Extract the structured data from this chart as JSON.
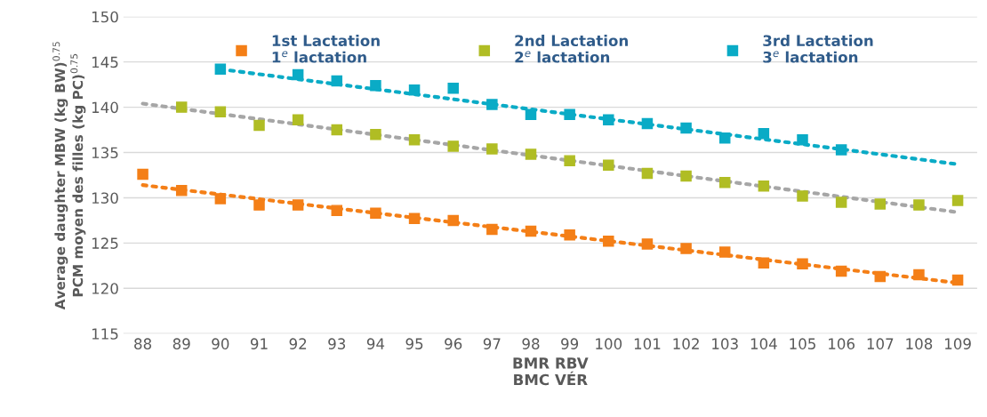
{
  "chart_data": {
    "type": "scatter",
    "xlabel": "BMR RBV\nBMC VÉR",
    "ylabel": "Average daughter MBW (kg BW)$^{0.75}$\nPCM moyen des filles (kg PC)$^{0.75}$",
    "x": [
      88,
      89,
      90,
      91,
      92,
      93,
      94,
      95,
      96,
      97,
      98,
      99,
      100,
      101,
      102,
      103,
      104,
      105,
      106,
      107,
      108,
      109
    ],
    "xlim": [
      87.5,
      109.5
    ],
    "xticks": [
      88,
      89,
      90,
      91,
      92,
      93,
      94,
      95,
      96,
      97,
      98,
      99,
      100,
      101,
      102,
      103,
      104,
      105,
      106,
      107,
      108,
      109
    ],
    "ylim": [
      115,
      150
    ],
    "yticks": [
      115,
      120,
      125,
      130,
      135,
      140,
      145,
      150
    ],
    "grid": "y",
    "legend": "top",
    "marker": "square",
    "series": [
      {
        "name": "1st Lactation\n1$^{e}$ lactation",
        "color": "#f47f17",
        "values": [
          132.6,
          130.8,
          129.9,
          129.2,
          129.2,
          128.6,
          128.3,
          127.7,
          127.5,
          126.5,
          126.3,
          125.9,
          125.2,
          124.9,
          124.4,
          124.0,
          122.8,
          122.7,
          121.9,
          121.3,
          121.5,
          120.9
        ]
      },
      {
        "name": "2nd Lactation\n2$^{e}$ lactation",
        "color": "#b0bd24",
        "values": [
          null,
          140.0,
          139.5,
          138.0,
          138.6,
          137.5,
          137.0,
          136.4,
          135.7,
          135.4,
          134.8,
          134.1,
          133.6,
          132.7,
          132.4,
          131.7,
          131.3,
          130.2,
          129.5,
          129.3,
          129.2,
          129.7
        ]
      },
      {
        "name": "3rd Lactation\n3$^{e}$ lactation",
        "color": "#0aabc6",
        "values": [
          null,
          null,
          144.2,
          null,
          143.6,
          142.9,
          142.4,
          141.9,
          142.1,
          140.3,
          139.2,
          139.2,
          138.6,
          138.2,
          137.7,
          136.6,
          137.1,
          136.4,
          135.3,
          null,
          null,
          null
        ]
      },
      {
        "type": "line",
        "line_style": "dotted",
        "marker": "none",
        "color": "#f47f17",
        "x": [
          88,
          109
        ],
        "values": [
          131.4,
          120.6
        ]
      },
      {
        "type": "line",
        "line_style": "dotted",
        "marker": "none",
        "color": "#a6a6a6",
        "x": [
          88,
          109
        ],
        "values": [
          140.4,
          128.4
        ]
      },
      {
        "type": "line",
        "line_style": "dotted",
        "marker": "none",
        "color": "#0aabc6",
        "x": [
          90,
          109
        ],
        "values": [
          144.2,
          133.7
        ]
      }
    ]
  }
}
